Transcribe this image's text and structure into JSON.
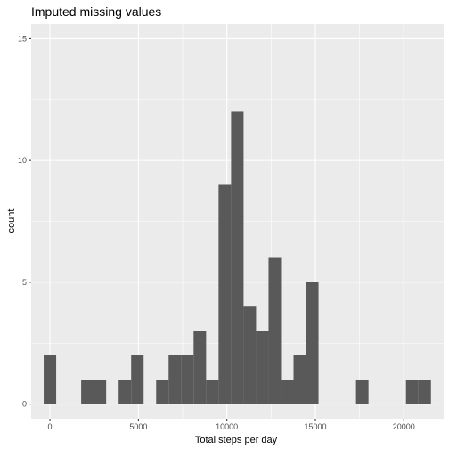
{
  "chart_data": {
    "type": "bar",
    "title": "Imputed missing values",
    "xlabel": "Total steps per day",
    "ylabel": "count",
    "xlim": [
      -1060,
      22250
    ],
    "ylim": [
      -0.6,
      15.6
    ],
    "x_ticks": [
      0,
      5000,
      10000,
      15000,
      20000
    ],
    "x_tick_labels": [
      "0",
      "5000",
      "10000",
      "15000",
      "20000"
    ],
    "y_ticks": [
      0,
      5,
      10,
      15
    ],
    "y_tick_labels": [
      "0",
      "5",
      "10",
      "15"
    ],
    "bin_width": 706,
    "bins": [
      {
        "x": 0,
        "count": 2
      },
      {
        "x": 706,
        "count": 0
      },
      {
        "x": 1412,
        "count": 0
      },
      {
        "x": 2118,
        "count": 1
      },
      {
        "x": 2824,
        "count": 1
      },
      {
        "x": 3530,
        "count": 0
      },
      {
        "x": 4236,
        "count": 1
      },
      {
        "x": 4942,
        "count": 2
      },
      {
        "x": 5648,
        "count": 0
      },
      {
        "x": 6354,
        "count": 1
      },
      {
        "x": 7060,
        "count": 2
      },
      {
        "x": 7766,
        "count": 2
      },
      {
        "x": 8472,
        "count": 3
      },
      {
        "x": 9178,
        "count": 1
      },
      {
        "x": 9884,
        "count": 9
      },
      {
        "x": 10590,
        "count": 12
      },
      {
        "x": 11296,
        "count": 4
      },
      {
        "x": 12002,
        "count": 3
      },
      {
        "x": 12708,
        "count": 6
      },
      {
        "x": 13414,
        "count": 1
      },
      {
        "x": 14120,
        "count": 2
      },
      {
        "x": 14826,
        "count": 5
      },
      {
        "x": 15532,
        "count": 0
      },
      {
        "x": 16238,
        "count": 0
      },
      {
        "x": 16944,
        "count": 0
      },
      {
        "x": 17650,
        "count": 1
      },
      {
        "x": 18356,
        "count": 0
      },
      {
        "x": 19062,
        "count": 0
      },
      {
        "x": 19768,
        "count": 0
      },
      {
        "x": 20474,
        "count": 1
      },
      {
        "x": 21180,
        "count": 1
      }
    ],
    "panel_background": "#ebebeb",
    "bar_color": "#595959",
    "grid": true,
    "legend": "none"
  }
}
